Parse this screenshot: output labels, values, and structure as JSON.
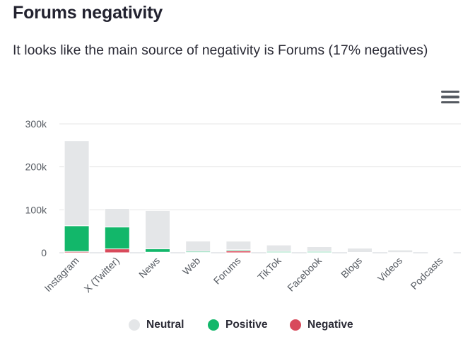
{
  "header": {
    "title": "Forums negativity",
    "subtitle": "It looks like the main source of negativity is Forums (17% negatives)"
  },
  "menu": {
    "icon": "hamburger-menu-icon"
  },
  "chart_data": {
    "type": "bar",
    "stacked": true,
    "title": "",
    "xlabel": "",
    "ylabel": "",
    "ylim": [
      0,
      300000
    ],
    "yticks": [
      {
        "value": 0,
        "label": "0"
      },
      {
        "value": 100000,
        "label": "100k"
      },
      {
        "value": 200000,
        "label": "200k"
      },
      {
        "value": 300000,
        "label": "300k"
      }
    ],
    "grid": true,
    "legend_position": "bottom-center",
    "categories": [
      "Instagram",
      "X (Twitter)",
      "News",
      "Web",
      "Forums",
      "TikTok",
      "Facebook",
      "Blogs",
      "Videos",
      "Podcasts"
    ],
    "series": [
      {
        "name": "Neutral",
        "color": "#e4e6e8",
        "values": [
          198000,
          43000,
          89000,
          24000,
          20000,
          15000,
          11000,
          10000,
          6000,
          500
        ]
      },
      {
        "name": "Positive",
        "color": "#12b76a",
        "values": [
          60000,
          51000,
          8000,
          2500,
          2500,
          2500,
          2500,
          500,
          300,
          100
        ]
      },
      {
        "name": "Negative",
        "color": "#d84a5b",
        "values": [
          3000,
          9000,
          1200,
          700,
          4500,
          500,
          500,
          300,
          200,
          50
        ]
      }
    ]
  }
}
